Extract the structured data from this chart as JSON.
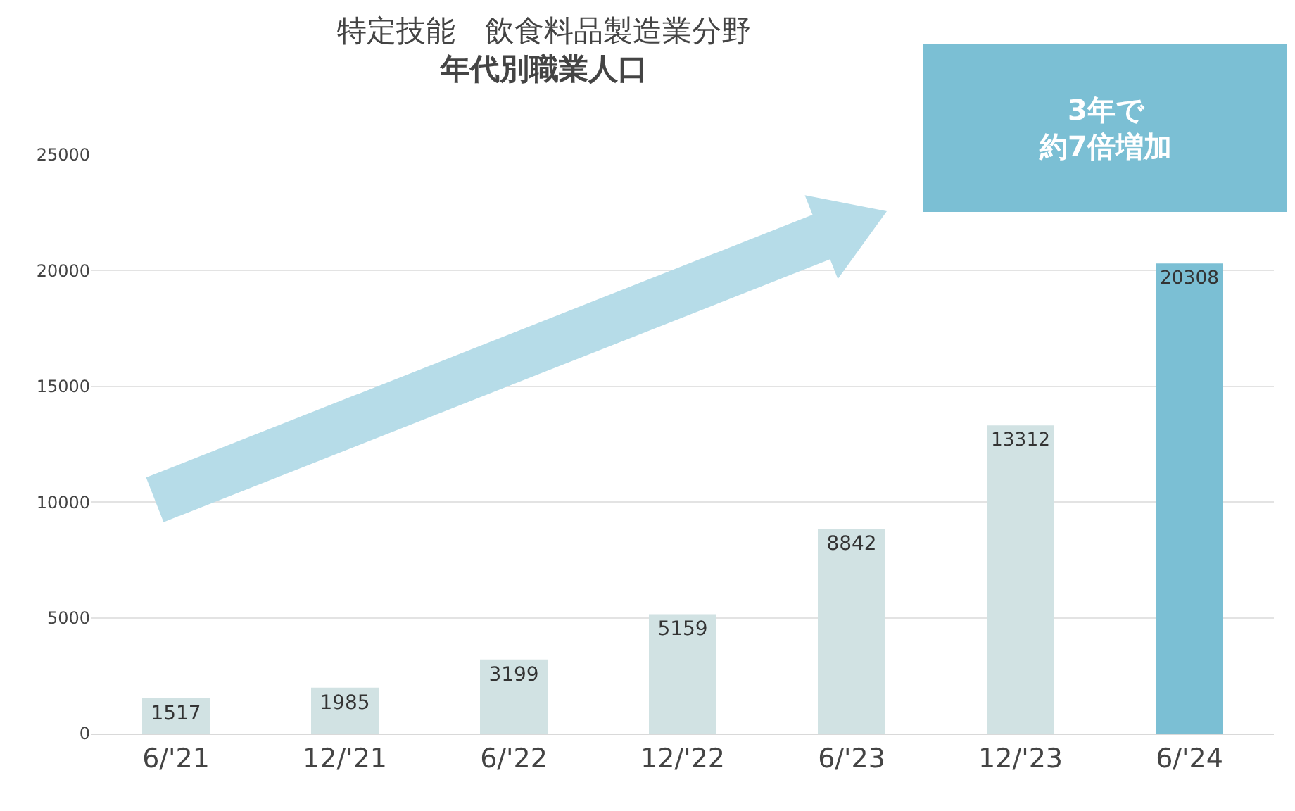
{
  "chart_data": {
    "type": "bar",
    "title": "特定技能　飲食料品製造業分野",
    "subtitle": "年代別職業人口",
    "categories": [
      "6/'21",
      "12/'21",
      "6/'22",
      "12/'22",
      "6/'23",
      "12/'23",
      "6/'24"
    ],
    "values": [
      1517,
      1985,
      3199,
      5159,
      8842,
      13312,
      20308
    ],
    "colors": [
      "#d1e2e3",
      "#d1e2e3",
      "#d1e2e3",
      "#d1e2e3",
      "#d1e2e3",
      "#d1e2e3",
      "#7bbfd4"
    ],
    "ylim": [
      0,
      25000
    ],
    "yticks": [
      0,
      5000,
      10000,
      15000,
      20000,
      25000
    ],
    "grid": "y",
    "data_labels": true,
    "annotations": [
      "3年で約7倍増加"
    ]
  }
}
